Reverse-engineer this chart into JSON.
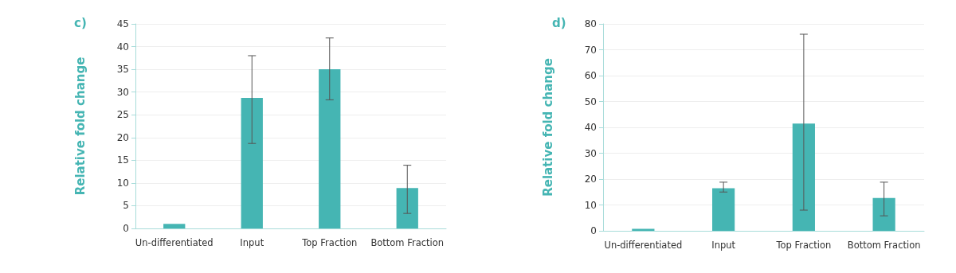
{
  "chart_data": [
    {
      "type": "bar",
      "title": "c)",
      "ylabel": "Relative fold change",
      "categories": [
        "Un-differentiated",
        "Input",
        "Top Fraction",
        "Bottom Fraction"
      ],
      "values": [
        1,
        28.7,
        35,
        8.9
      ],
      "errors": [
        null,
        [
          18.7,
          38
        ],
        [
          28.3,
          41.9
        ],
        [
          3.3,
          13.9
        ]
      ],
      "color": "#45b5b3",
      "ylim": [
        0,
        45
      ],
      "yticks": [
        0,
        5,
        10,
        15,
        20,
        25,
        30,
        35,
        40,
        45
      ],
      "grid": "y"
    },
    {
      "type": "bar",
      "title": "d)",
      "ylabel": "Relative fold change",
      "categories": [
        "Un-differentiated",
        "Input",
        "Top Fraction",
        "Bottom Fraction"
      ],
      "values": [
        0.8,
        16.5,
        41.5,
        12.7
      ],
      "errors": [
        null,
        [
          15,
          18.8
        ],
        [
          8,
          76
        ],
        [
          5.8,
          18.8
        ]
      ],
      "color": "#45b5b3",
      "ylim": [
        0,
        80
      ],
      "yticks": [
        0,
        10,
        20,
        30,
        40,
        50,
        60,
        70,
        80
      ],
      "grid": "y"
    }
  ]
}
